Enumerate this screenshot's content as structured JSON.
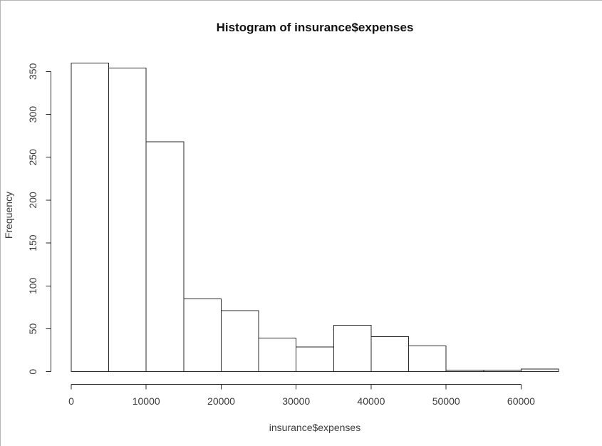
{
  "chart_data": {
    "type": "bar",
    "variant": "histogram",
    "title": "Histogram of insurance$expenses",
    "xlabel": "insurance$expenses",
    "ylabel": "Frequency",
    "bin_edges": [
      0,
      5000,
      10000,
      15000,
      20000,
      25000,
      30000,
      35000,
      40000,
      45000,
      50000,
      55000,
      60000,
      65000
    ],
    "values": [
      360,
      354,
      268,
      85,
      71,
      39,
      29,
      54,
      41,
      30,
      2,
      2,
      3
    ],
    "x_tick_values": [
      0,
      10000,
      20000,
      30000,
      40000,
      50000,
      60000
    ],
    "x_tick_labels": [
      "0",
      "10000",
      "20000",
      "30000",
      "40000",
      "50000",
      "60000"
    ],
    "y_tick_values": [
      0,
      50,
      100,
      150,
      200,
      250,
      300,
      350
    ],
    "y_tick_labels": [
      "0",
      "50",
      "100",
      "150",
      "200",
      "250",
      "300",
      "350"
    ],
    "xlim": [
      0,
      65000
    ],
    "ylim": [
      0,
      360
    ],
    "grid": false,
    "colors": {
      "bar_fill": "#ffffff",
      "bar_border": "#2a2a2a",
      "axis": "#2a2a2a",
      "text": "#3a3a3a",
      "title": "#111111",
      "background": "#ffffff",
      "frame_border": "#b5b5b5"
    }
  }
}
